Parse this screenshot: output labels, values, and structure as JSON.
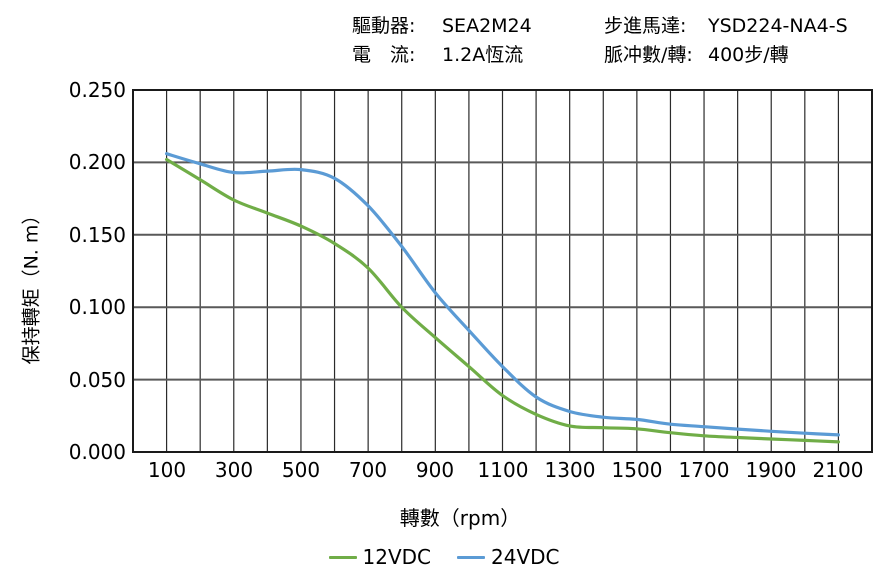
{
  "header": {
    "items": [
      {
        "label": "驅動器:",
        "value": "SEA2M24"
      },
      {
        "label": "步進馬達:",
        "value": "YSD224-NA4-S"
      },
      {
        "label": "電　流:",
        "value": "1.2A恆流"
      },
      {
        "label": "脈冲數/轉:",
        "value": "400步/轉"
      }
    ]
  },
  "chart_data": {
    "type": "line",
    "title": "",
    "xlabel": "轉數（rpm）",
    "ylabel": "保持轉矩（N. m）",
    "xlim": [
      0,
      2200
    ],
    "ylim": [
      0,
      0.25
    ],
    "x_grid_step": 100,
    "y_grid_step": 0.05,
    "grid": true,
    "legend_position": "bottom",
    "x_tick_values": [
      100,
      300,
      500,
      700,
      900,
      1100,
      1300,
      1500,
      1700,
      1900,
      2100
    ],
    "x_tick_labels": [
      "100",
      "300",
      "500",
      "700",
      "900",
      "1100",
      "1300",
      "1500",
      "1700",
      "1900",
      "2100"
    ],
    "y_tick_values": [
      0.25,
      0.2,
      0.15,
      0.1,
      0.05,
      0.0
    ],
    "y_tick_labels": [
      "0.250",
      "0.200",
      "0.150",
      "0.100",
      "0.050",
      "0.000"
    ],
    "x": [
      100,
      200,
      300,
      400,
      500,
      600,
      700,
      800,
      900,
      1000,
      1100,
      1200,
      1300,
      1400,
      1500,
      1600,
      1700,
      1800,
      1900,
      2000,
      2100
    ],
    "series": [
      {
        "name": "12VDC",
        "color": "#70AD47",
        "values": [
          0.202,
          0.188,
          0.174,
          0.165,
          0.156,
          0.144,
          0.127,
          0.1,
          0.079,
          0.059,
          0.039,
          0.026,
          0.018,
          0.0168,
          0.016,
          0.0133,
          0.0112,
          0.01,
          0.009,
          0.008,
          0.007
        ]
      },
      {
        "name": "24VDC",
        "color": "#5B9BD5",
        "values": [
          0.206,
          0.199,
          0.193,
          0.194,
          0.195,
          0.189,
          0.17,
          0.142,
          0.11,
          0.084,
          0.059,
          0.038,
          0.028,
          0.024,
          0.0225,
          0.0192,
          0.0175,
          0.0158,
          0.0143,
          0.013,
          0.0118
        ]
      }
    ],
    "colors": {
      "grid_v": "#2b2b2b",
      "grid_h": "#595959",
      "border": "#1a1a1a",
      "text": "#000000"
    }
  }
}
